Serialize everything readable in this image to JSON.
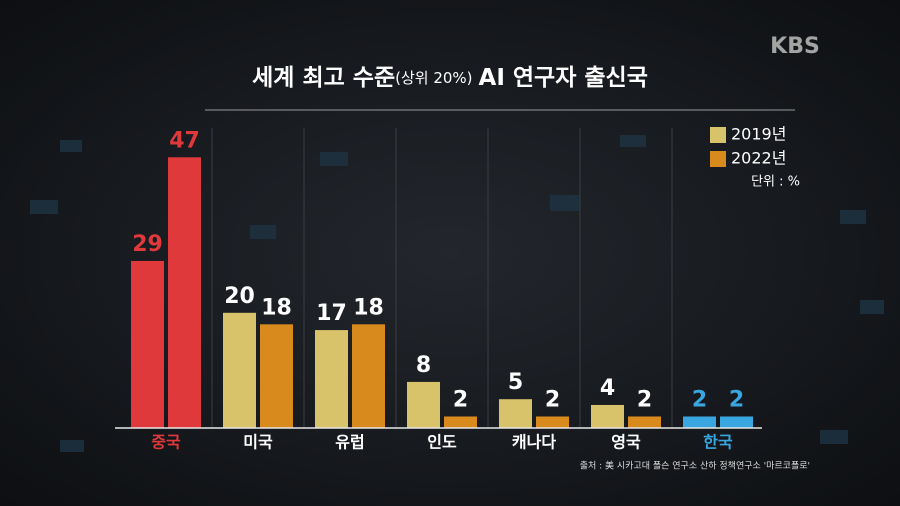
{
  "chart_data": {
    "type": "bar",
    "title": "세계 최고 수준",
    "title_note": "(상위 20%)",
    "title_end": "AI 연구자 출신국",
    "categories": [
      "중국",
      "미국",
      "유럽",
      "인도",
      "캐나다",
      "영국",
      "한국"
    ],
    "category_colors": [
      "#e0393b",
      "#ffffff",
      "#ffffff",
      "#ffffff",
      "#ffffff",
      "#ffffff",
      "#3aa6e0"
    ],
    "series": [
      {
        "name": "2019년",
        "color": "#d9c36a",
        "values": [
          29,
          20,
          17,
          8,
          5,
          4,
          2
        ],
        "point_colors": [
          "#e0393b",
          null,
          null,
          null,
          null,
          null,
          "#3aa6e0"
        ]
      },
      {
        "name": "2022년",
        "color": "#d98a1c",
        "values": [
          47,
          18,
          18,
          2,
          2,
          2,
          2
        ],
        "point_colors": [
          "#e0393b",
          null,
          null,
          null,
          null,
          null,
          "#3aa6e0"
        ]
      }
    ],
    "ylim": [
      0,
      50
    ],
    "unit": "단위 : %",
    "source": "출처 : 美 시카고대 폴슨 연구소 산하 정책연구소 '마르코폴로'",
    "logo": "KBS"
  }
}
